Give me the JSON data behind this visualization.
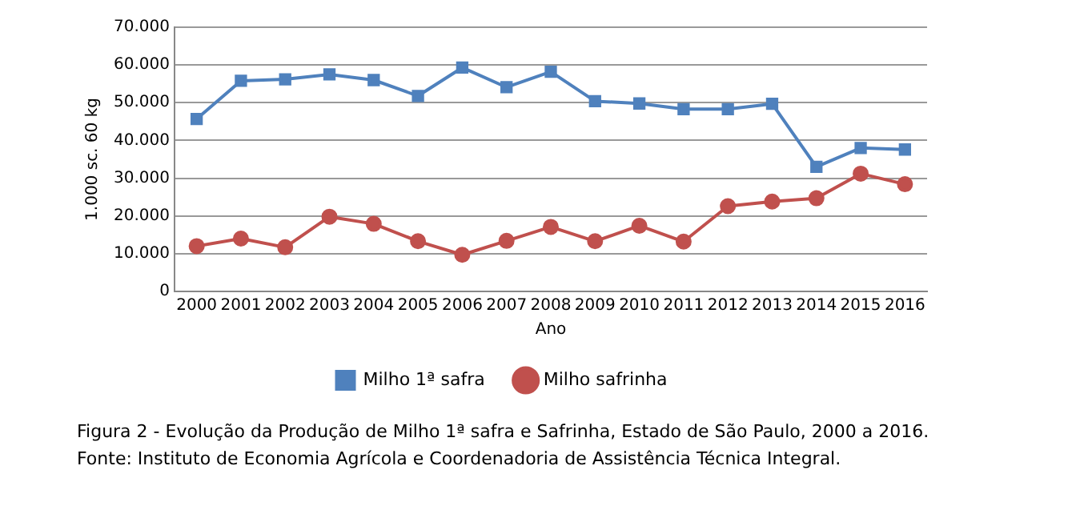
{
  "chart_data": {
    "type": "line",
    "xlabel": "Ano",
    "ylabel": "1.000 sc. 60 kg",
    "categories": [
      "2000",
      "2001",
      "2002",
      "2003",
      "2004",
      "2005",
      "2006",
      "2007",
      "2008",
      "2009",
      "2010",
      "2011",
      "2012",
      "2013",
      "2014",
      "2015",
      "2016"
    ],
    "series": [
      {
        "name": "Milho 1ª safra",
        "color": "#4f81bd",
        "marker": "square",
        "values": [
          45700,
          55800,
          56200,
          57500,
          56000,
          51800,
          59300,
          54100,
          58200,
          50400,
          49800,
          48300,
          48300,
          49700,
          33000,
          38000,
          37600
        ]
      },
      {
        "name": "Milho safrinha",
        "color": "#c0504d",
        "marker": "circle",
        "values": [
          12000,
          14000,
          11700,
          19800,
          17900,
          13300,
          9700,
          13400,
          17100,
          13300,
          17400,
          13200,
          22600,
          23800,
          24700,
          31200,
          28400
        ]
      }
    ],
    "ylim": [
      0,
      70000
    ],
    "yticks": [
      0,
      {
        "value": 10000,
        "label": "10.000"
      },
      {
        "value": 20000,
        "label": "20.000"
      },
      {
        "value": 30000,
        "label": "30.000"
      },
      {
        "value": 40000,
        "label": "40.000"
      },
      {
        "value": 50000,
        "label": "50.000"
      },
      {
        "value": 60000,
        "label": "60.000"
      },
      {
        "value": 70000,
        "label": "70.000"
      }
    ],
    "grid": "y",
    "legend": "bottom",
    "line_style": "solid",
    "annotations": [
      "Figura 2 - Evolução da Produção de Milho 1ª safra e Safrinha, Estado de São Paulo, 2000 a 2016.",
      "Fonte: Instituto de Economia Agrícola e Coordenadoria de Assistência Técnica Integral."
    ]
  }
}
